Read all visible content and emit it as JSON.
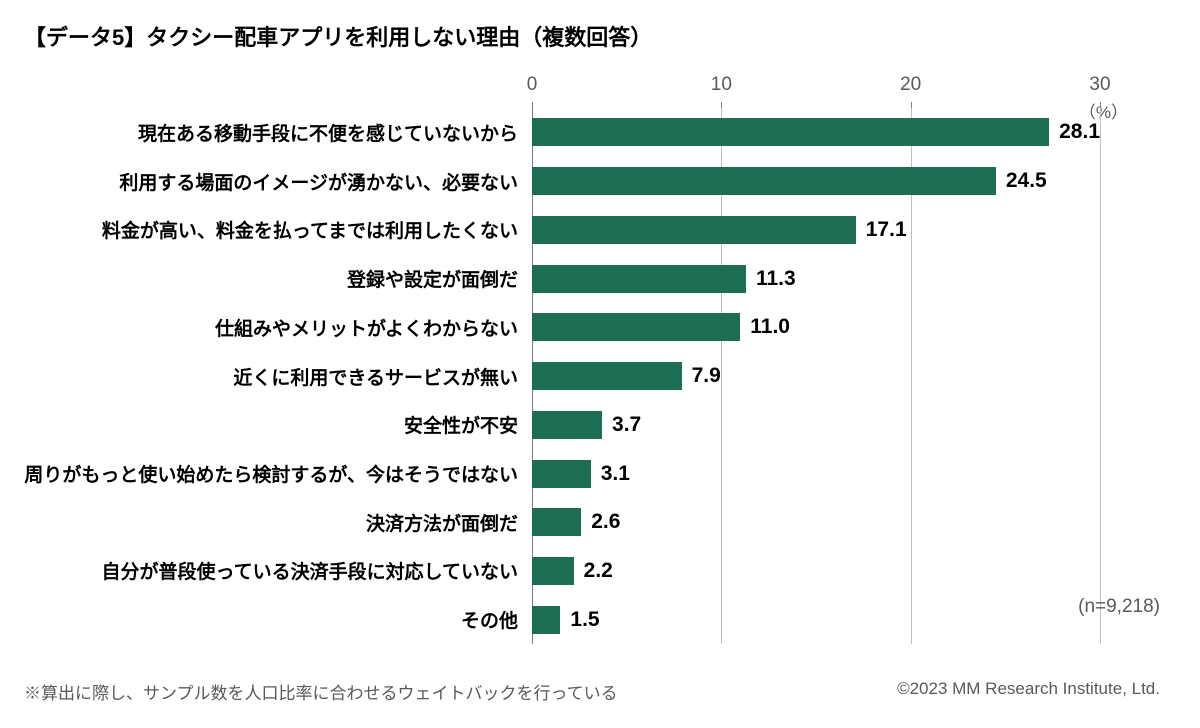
{
  "title": "【データ5】タクシー配車アプリを利用しない理由（複数回答）",
  "chart": {
    "type": "bar-horizontal",
    "unit_label": "（%）",
    "x_axis": {
      "min": 0,
      "max": 30,
      "ticks": [
        0,
        10,
        20,
        30
      ]
    },
    "bar_color": "#1d6e53",
    "grid_color": "#bfbfbf",
    "axis_color": "#808080",
    "background_color": "#ffffff",
    "label_fontsize": 19,
    "value_fontsize": 21,
    "categories": [
      "現在ある移動手段に不便を感じていないから",
      "利用する場面のイメージが湧かない、必要ない",
      "料金が高い、料金を払ってまでは利用したくない",
      "登録や設定が面倒だ",
      "仕組みやメリットがよくわからない",
      "近くに利用できるサービスが無い",
      "安全性が不安",
      "周りがもっと使い始めたら検討するが、今はそうではない",
      "決済方法が面倒だ",
      "自分が普段使っている決済手段に対応していない",
      "その他"
    ],
    "values": [
      28.1,
      24.5,
      17.1,
      11.3,
      11.0,
      7.9,
      3.7,
      3.1,
      2.6,
      2.2,
      1.5
    ],
    "value_labels": [
      "28.1",
      "24.5",
      "17.1",
      "11.3",
      "11.0",
      "7.9",
      "3.7",
      "3.1",
      "2.6",
      "2.2",
      "1.5"
    ]
  },
  "n_note": "(n=9,218)",
  "footer_left": "※算出に際し、サンプル数を人口比率に合わせるウェイトバックを行っている",
  "footer_right": "©2023 MM Research Institute, Ltd."
}
